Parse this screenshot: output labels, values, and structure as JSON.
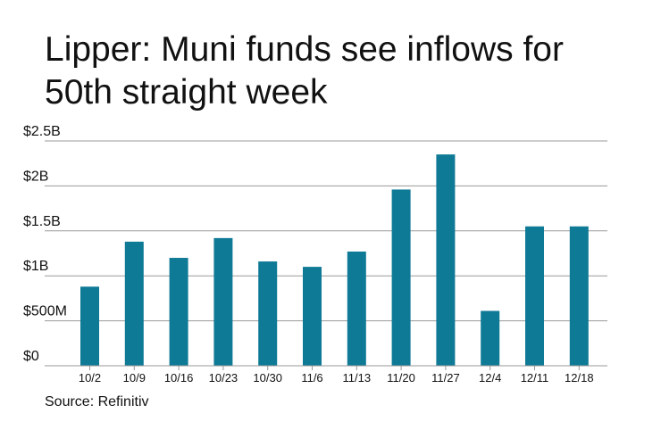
{
  "title_line1": "Lipper: Muni funds see inflows for",
  "title_line2": "50th straight week",
  "source": "Source: Refinitiv",
  "chart_data": {
    "type": "bar",
    "title": "Lipper: Muni funds see inflows for 50th straight week",
    "categories": [
      "10/2",
      "10/9",
      "10/16",
      "10/23",
      "10/30",
      "11/6",
      "11/13",
      "11/20",
      "11/27",
      "12/4",
      "12/11",
      "12/18"
    ],
    "values": [
      0.88,
      1.38,
      1.2,
      1.42,
      1.16,
      1.1,
      1.27,
      1.96,
      2.35,
      0.61,
      1.55,
      1.55
    ],
    "ylim": [
      0,
      2.5
    ],
    "yticks": [
      0,
      0.5,
      1,
      1.5,
      2,
      2.5
    ],
    "ytick_labels": [
      "$0",
      "$500M",
      "$1B",
      "$1.5B",
      "$2B",
      "$2.5B"
    ],
    "grid": true,
    "bar_color": "#0f7a96",
    "grid_color": "#999999"
  }
}
